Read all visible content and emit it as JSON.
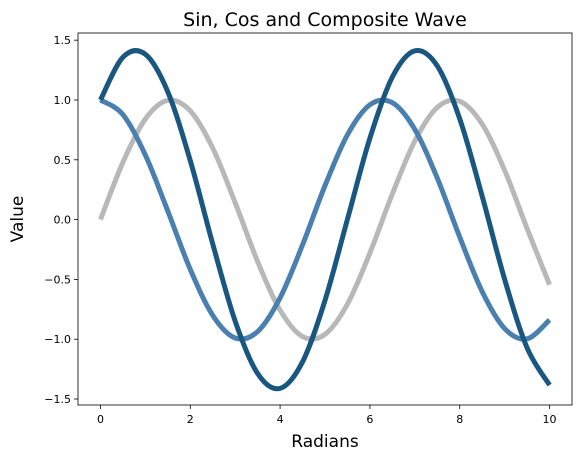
{
  "chart_data": {
    "type": "line",
    "title": "Sin, Cos and Composite Wave",
    "xlabel": "Radians",
    "ylabel": "Value",
    "xlim": [
      -0.5,
      10.5
    ],
    "ylim": [
      -1.55,
      1.56
    ],
    "x_ticks": [
      0,
      2,
      4,
      6,
      8,
      10
    ],
    "x_tick_labels": [
      "0",
      "2",
      "4",
      "6",
      "8",
      "10"
    ],
    "y_ticks": [
      -1.5,
      -1.0,
      -0.5,
      0.0,
      0.5,
      1.0,
      1.5
    ],
    "y_tick_labels": [
      "−1.5",
      "−1.0",
      "−0.5",
      "0.0",
      "0.5",
      "1.0",
      "1.5"
    ],
    "grid": false,
    "x": [
      0.0,
      0.5,
      1.0,
      1.5,
      2.0,
      2.5,
      3.0,
      3.5,
      4.0,
      4.5,
      5.0,
      5.5,
      6.0,
      6.5,
      7.0,
      7.5,
      8.0,
      8.5,
      9.0,
      9.5,
      10.0
    ],
    "series": [
      {
        "color": "#b8b8b8",
        "values": [
          0.0,
          0.479,
          0.841,
          0.997,
          0.909,
          0.598,
          0.141,
          -0.351,
          -0.757,
          -0.978,
          -0.959,
          -0.706,
          -0.279,
          0.215,
          0.657,
          0.938,
          0.989,
          0.798,
          0.412,
          -0.075,
          -0.544
        ]
      },
      {
        "color": "#4a80b0",
        "values": [
          1.0,
          0.878,
          0.54,
          0.071,
          -0.416,
          -0.801,
          -0.99,
          -0.936,
          -0.654,
          -0.211,
          0.284,
          0.709,
          0.96,
          0.977,
          0.754,
          0.347,
          -0.146,
          -0.602,
          -0.911,
          -0.997,
          -0.839
        ]
      },
      {
        "color": "#1a5780",
        "values": [
          1.0,
          1.357,
          1.382,
          1.068,
          0.493,
          -0.203,
          -0.849,
          -1.287,
          -1.411,
          -1.189,
          -0.675,
          0.003,
          0.681,
          1.192,
          1.411,
          1.285,
          0.843,
          0.196,
          -0.499,
          -1.072,
          -1.383
        ]
      }
    ]
  }
}
